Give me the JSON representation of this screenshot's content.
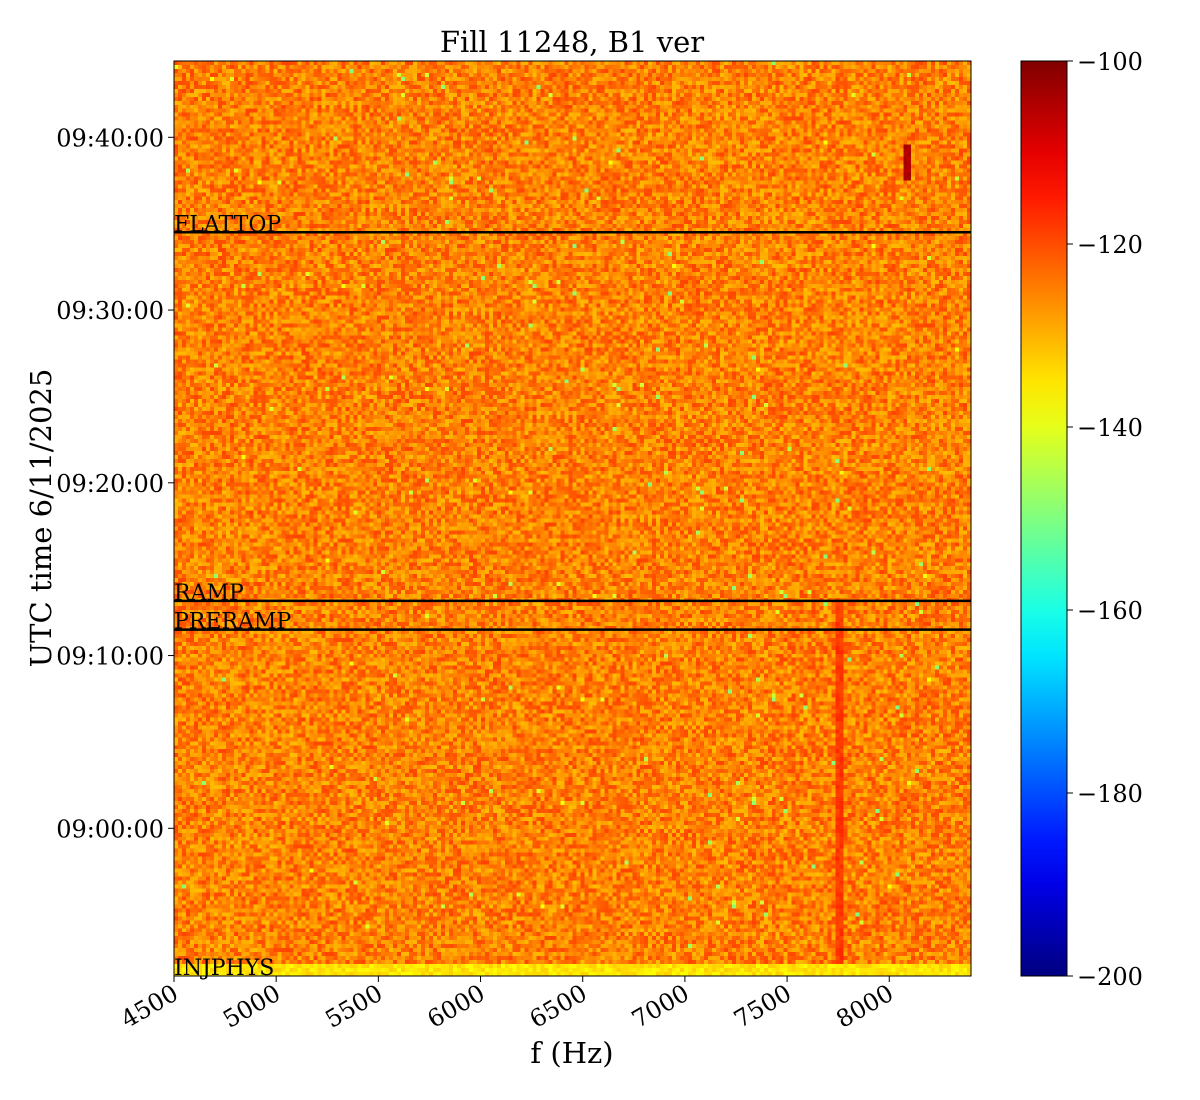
{
  "chart_data": {
    "type": "heatmap",
    "title": "Fill 11248, B1 ver",
    "xlabel": "f (Hz)",
    "ylabel": "UTC time 6/11/2025",
    "xlim": [
      4500,
      8400
    ],
    "x_ticks": [
      4500,
      5000,
      5500,
      6000,
      6500,
      7000,
      7500,
      8000
    ],
    "x_tick_labels": [
      "4500",
      "5000",
      "5500",
      "6000",
      "6500",
      "7000",
      "7500",
      "8000"
    ],
    "y_time_range": [
      "08:51:27",
      "09:44:25"
    ],
    "y_ticks": [
      "09:00:00",
      "09:10:00",
      "09:20:00",
      "09:30:00",
      "09:40:00"
    ],
    "y_tick_labels": [
      "09:00:00",
      "09:10:00",
      "09:20:00",
      "09:30:00",
      "09:40:00"
    ],
    "colorbar": {
      "colormap": "jet",
      "range": [
        -200,
        -100
      ],
      "ticks": [
        -100,
        -120,
        -140,
        -160,
        -180,
        -200
      ],
      "tick_labels": [
        "−100",
        "−120",
        "−140",
        "−160",
        "−180",
        "−200"
      ]
    },
    "background_level": -125,
    "features": [
      {
        "kind": "vertical-line",
        "frequency": 7760,
        "time_start": "08:52:00",
        "time_end": "09:13:00",
        "level": -118
      },
      {
        "kind": "spot",
        "frequency": 8085,
        "time_start": "09:37:30",
        "time_end": "09:39:30",
        "level": -105
      },
      {
        "kind": "horizontal-band",
        "time_start": "08:51:27",
        "time_end": "08:52:15",
        "level": -135
      }
    ],
    "phase_markers": [
      {
        "label": "FLATTOP",
        "time": "09:34:30"
      },
      {
        "label": "RAMP",
        "time": "09:13:10"
      },
      {
        "label": "PRERAMP",
        "time": "09:11:30"
      },
      {
        "label": "INJPHYS",
        "time": "08:51:27"
      }
    ]
  }
}
